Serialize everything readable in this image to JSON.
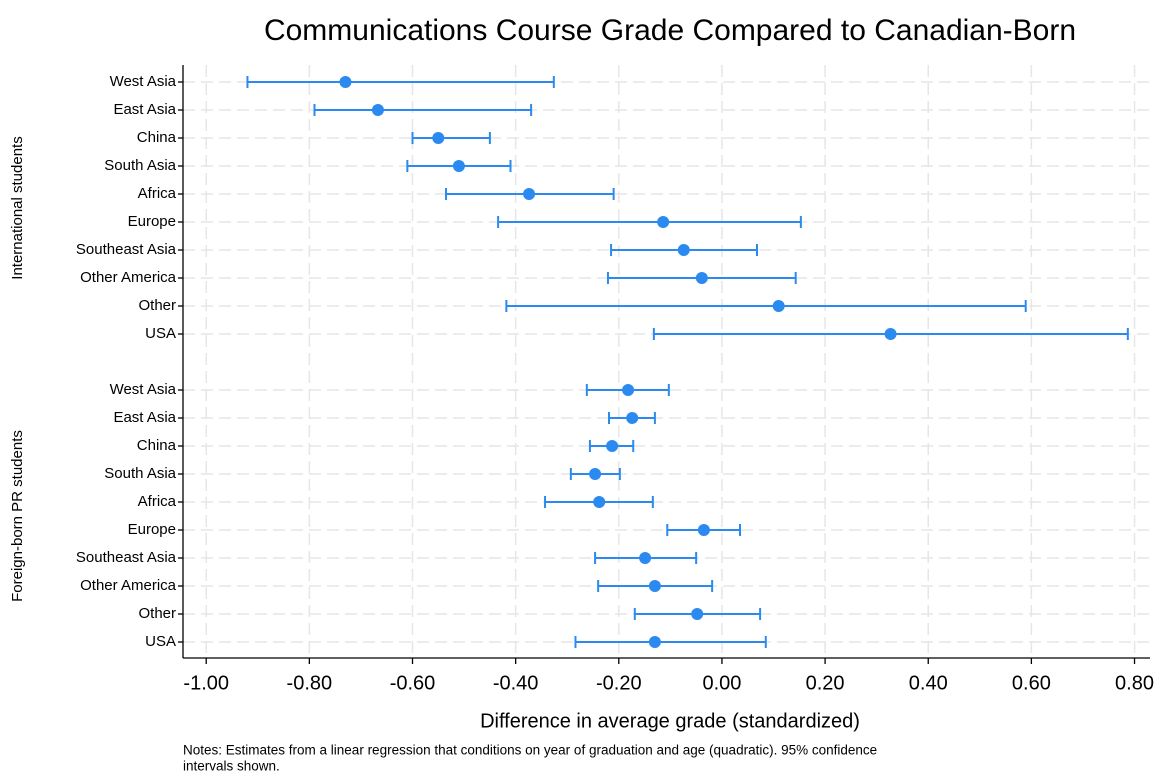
{
  "chart_data": {
    "type": "errorbar",
    "title": "Communications Course Grade Compared to Canadian-Born",
    "xlabel": "Difference in average grade (standardized)",
    "notes": [
      "Notes: Estimates from a linear regression that conditions on year of graduation and age (quadratic). 95% confidence",
      "intervals shown."
    ],
    "color": "#2a8af0",
    "grid": true,
    "xlim": [
      -1.045,
      0.83
    ],
    "xticks": [
      {
        "value": -1.0,
        "label": "-1.00"
      },
      {
        "value": -0.8,
        "label": "-0.80"
      },
      {
        "value": -0.6,
        "label": "-0.60"
      },
      {
        "value": -0.4,
        "label": "-0.40"
      },
      {
        "value": -0.2,
        "label": "-0.20"
      },
      {
        "value": 0,
        "label": "0.00"
      },
      {
        "value": 0.2,
        "label": "0.20"
      },
      {
        "value": 0.4,
        "label": "0.40"
      },
      {
        "value": 0.6,
        "label": "0.60"
      },
      {
        "value": 0.8,
        "label": "0.80"
      }
    ],
    "groups": [
      {
        "name": "International students",
        "categories": [
          "West Asia",
          "East Asia",
          "China",
          "South Asia",
          "Africa",
          "Europe",
          "Southeast Asia",
          "Other America",
          "Other",
          "USA"
        ],
        "values": [
          -0.73,
          -0.667,
          -0.55,
          -0.51,
          -0.374,
          -0.114,
          -0.074,
          -0.039,
          0.11,
          0.327
        ],
        "lower": [
          -0.92,
          -0.79,
          -0.6,
          -0.61,
          -0.535,
          -0.434,
          -0.215,
          -0.221,
          -0.418,
          -0.132
        ],
        "upper": [
          -0.326,
          -0.37,
          -0.45,
          -0.41,
          -0.21,
          0.153,
          0.068,
          0.143,
          0.589,
          0.787
        ]
      },
      {
        "name": "Foreign-born PR students",
        "categories": [
          "West Asia",
          "East Asia",
          "China",
          "South Asia",
          "Africa",
          "Europe",
          "Southeast Asia",
          "Other America",
          "Other",
          "USA"
        ],
        "values": [
          -0.182,
          -0.174,
          -0.213,
          -0.246,
          -0.238,
          -0.035,
          -0.149,
          -0.13,
          -0.048,
          -0.13
        ],
        "lower": [
          -0.262,
          -0.219,
          -0.256,
          -0.293,
          -0.343,
          -0.106,
          -0.246,
          -0.24,
          -0.169,
          -0.284
        ],
        "upper": [
          -0.103,
          -0.13,
          -0.172,
          -0.198,
          -0.134,
          0.035,
          -0.05,
          -0.019,
          0.074,
          0.085
        ]
      }
    ]
  }
}
